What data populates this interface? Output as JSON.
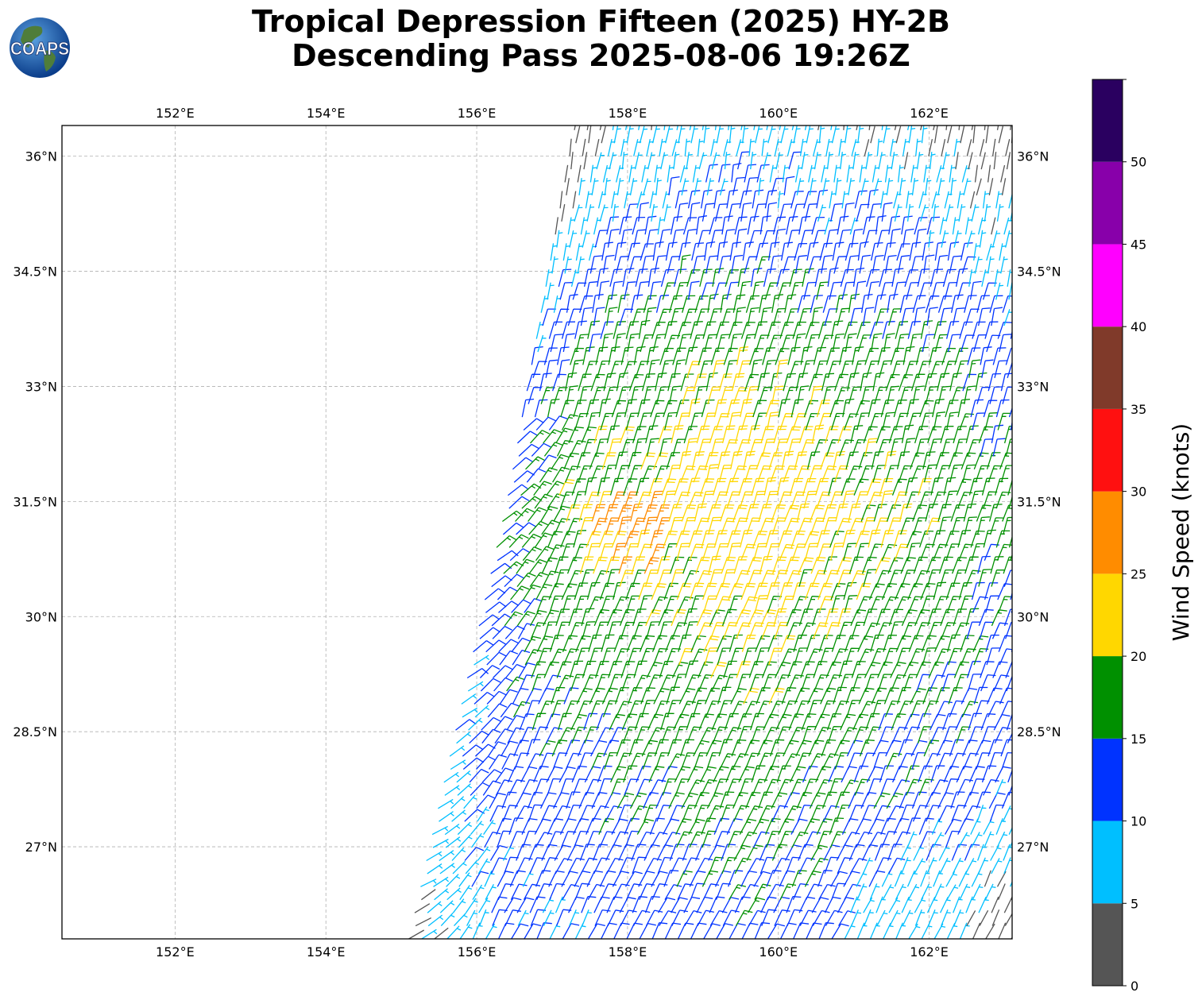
{
  "title": {
    "line1": "Tropical Depression Fifteen (2025) HY-2B",
    "line2": "Descending Pass 2025-08-06 19:26Z"
  },
  "logo": {
    "text": "COAPS",
    "icon": "globe-icon"
  },
  "axes": {
    "lon_ticks": [
      "152°E",
      "154°E",
      "156°E",
      "158°E",
      "160°E",
      "162°E"
    ],
    "lat_ticks": [
      "36°N",
      "34.5°N",
      "33°N",
      "31.5°N",
      "30°N",
      "28.5°N",
      "27°N"
    ],
    "lon_values": [
      152,
      154,
      156,
      158,
      160,
      162
    ],
    "lat_values": [
      36,
      34.5,
      33,
      31.5,
      30,
      28.5,
      27
    ],
    "lon_range": [
      150.5,
      163.1
    ],
    "lat_range": [
      25.8,
      36.4
    ],
    "grid": true
  },
  "colorbar": {
    "label": "Wind Speed (knots)",
    "tick_labels": [
      "0",
      "5",
      "10",
      "15",
      "20",
      "25",
      "30",
      "35",
      "40",
      "45",
      "50"
    ],
    "bins": [
      {
        "min": 0,
        "max": 5,
        "color": "#555555"
      },
      {
        "min": 5,
        "max": 10,
        "color": "#00bfff"
      },
      {
        "min": 10,
        "max": 15,
        "color": "#0033ff"
      },
      {
        "min": 15,
        "max": 20,
        "color": "#009000"
      },
      {
        "min": 20,
        "max": 25,
        "color": "#ffd700"
      },
      {
        "min": 25,
        "max": 30,
        "color": "#ff8c00"
      },
      {
        "min": 30,
        "max": 35,
        "color": "#ff1010"
      },
      {
        "min": 35,
        "max": 40,
        "color": "#803a2a"
      },
      {
        "min": 40,
        "max": 45,
        "color": "#ff00ff"
      },
      {
        "min": 45,
        "max": 50,
        "color": "#8800aa"
      },
      {
        "min": 50,
        "max": 55,
        "color": "#2a0060"
      }
    ]
  }
}
